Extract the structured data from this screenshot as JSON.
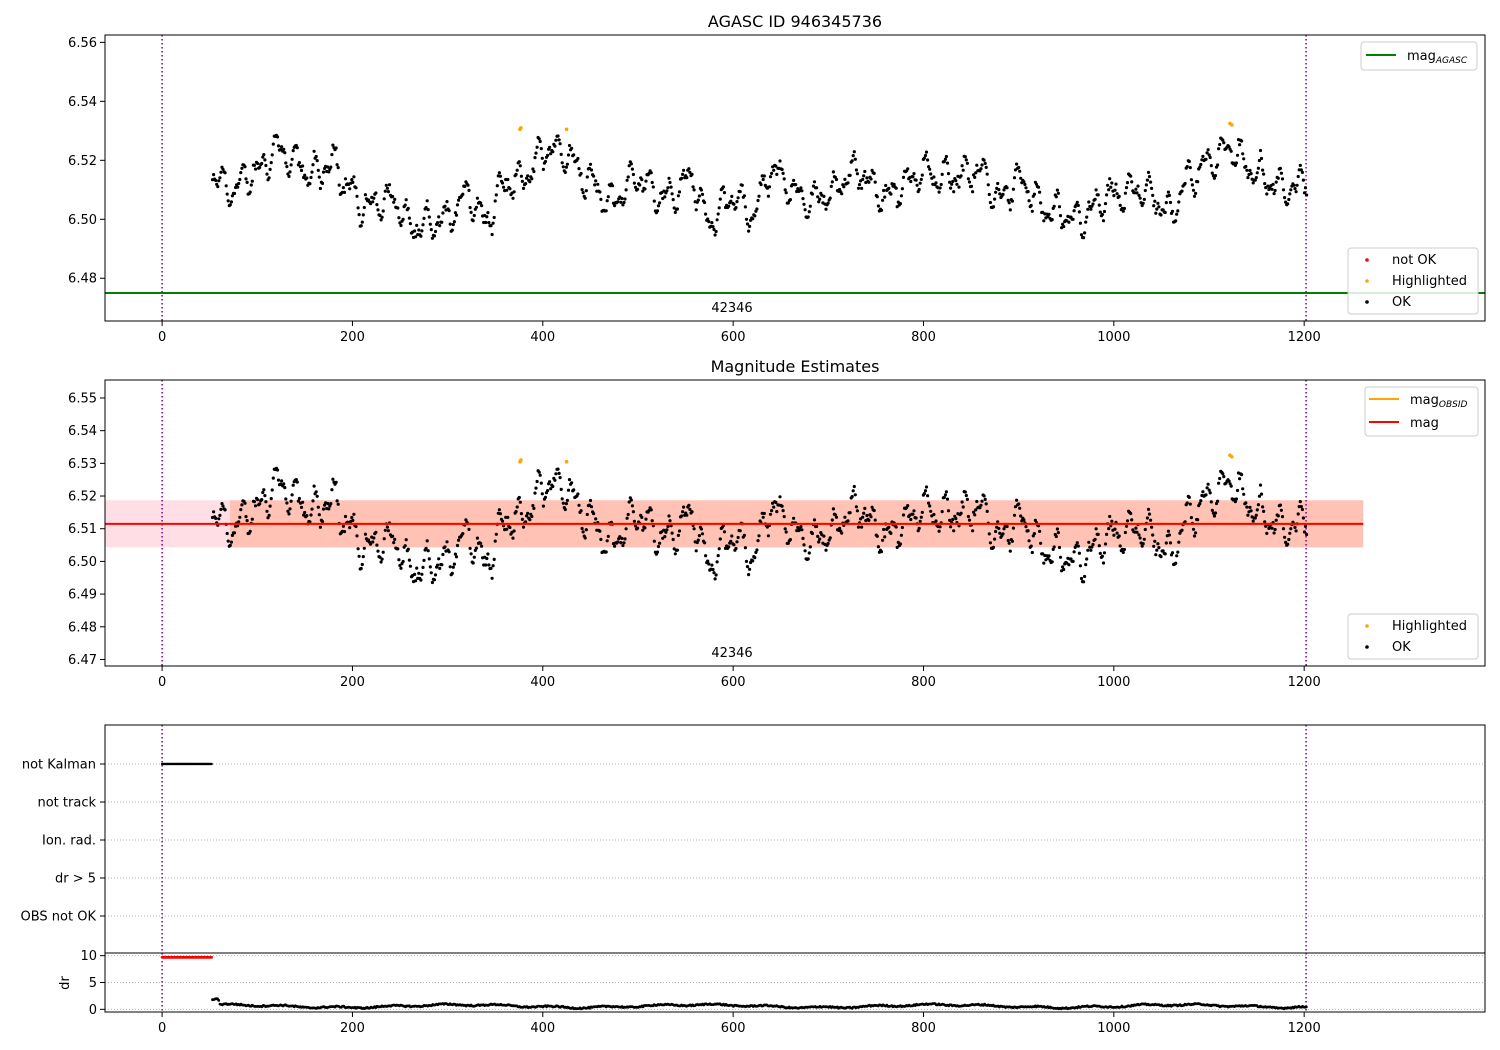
{
  "figure": {
    "obsid_label": "42346"
  },
  "colors": {
    "ok": "#000000",
    "highlighted": "#ffa500",
    "not_ok": "#ff0000",
    "mag_agasc_line": "#008000",
    "mag_line": "#ff0000",
    "mag_obsid_line": "#ffa500",
    "band_outer": "#ffc0cb",
    "band_inner": "#ffa07a",
    "obs_boundary": "#800080",
    "grid": "#b0b0b0"
  },
  "chart_data": [
    {
      "type": "scatter",
      "id": "agasc",
      "title": "AGASC ID 946345736",
      "xlim": [
        -60,
        1390
      ],
      "ylim": [
        6.4655,
        6.5625
      ],
      "xticks": [
        0,
        200,
        400,
        600,
        800,
        1000,
        1200
      ],
      "yticks": [
        6.48,
        6.5,
        6.52,
        6.54,
        6.56
      ],
      "ytick_labels": [
        "6.48",
        "6.50",
        "6.52",
        "6.54",
        "6.56"
      ],
      "mag_agasc": 6.475,
      "obs_boundaries": [
        0,
        1202
      ],
      "obs_label": {
        "text": "42346",
        "x": 601
      },
      "series_range": [
        53,
        1203
      ],
      "legends": [
        {
          "loc": "upper right",
          "entries": [
            {
              "label": "mag",
              "sub": "AGASC",
              "kind": "line",
              "color": "#008000"
            }
          ]
        },
        {
          "loc": "lower right",
          "entries": [
            {
              "label": "not OK",
              "kind": "marker",
              "color": "#ff0000"
            },
            {
              "label": "Highlighted",
              "kind": "marker",
              "color": "#ffa500"
            },
            {
              "label": "OK",
              "kind": "marker",
              "color": "#000000"
            }
          ]
        }
      ],
      "highlighted": [
        [
          376,
          6.5305
        ],
        [
          377,
          6.531
        ],
        [
          425,
          6.5305
        ],
        [
          1122,
          6.5325
        ],
        [
          1124,
          6.532
        ]
      ],
      "trend_knots": [
        [
          53,
          6.515
        ],
        [
          70,
          6.51
        ],
        [
          100,
          6.516
        ],
        [
          120,
          6.524
        ],
        [
          140,
          6.519
        ],
        [
          160,
          6.515
        ],
        [
          180,
          6.519
        ],
        [
          195,
          6.512
        ],
        [
          210,
          6.504
        ],
        [
          240,
          6.507
        ],
        [
          265,
          6.497
        ],
        [
          300,
          6.5
        ],
        [
          320,
          6.509
        ],
        [
          340,
          6.5
        ],
        [
          360,
          6.512
        ],
        [
          380,
          6.514
        ],
        [
          405,
          6.524
        ],
        [
          425,
          6.522
        ],
        [
          445,
          6.514
        ],
        [
          470,
          6.506
        ],
        [
          500,
          6.514
        ],
        [
          530,
          6.507
        ],
        [
          555,
          6.514
        ],
        [
          575,
          6.499
        ],
        [
          600,
          6.508
        ],
        [
          620,
          6.502
        ],
        [
          640,
          6.516
        ],
        [
          680,
          6.506
        ],
        [
          700,
          6.509
        ],
        [
          730,
          6.516
        ],
        [
          760,
          6.508
        ],
        [
          800,
          6.516
        ],
        [
          820,
          6.514
        ],
        [
          860,
          6.516
        ],
        [
          880,
          6.507
        ],
        [
          900,
          6.513
        ],
        [
          930,
          6.503
        ],
        [
          960,
          6.5
        ],
        [
          1000,
          6.508
        ],
        [
          1030,
          6.51
        ],
        [
          1060,
          6.502
        ],
        [
          1080,
          6.514
        ],
        [
          1100,
          6.52
        ],
        [
          1125,
          6.524
        ],
        [
          1145,
          6.516
        ],
        [
          1170,
          6.512
        ],
        [
          1190,
          6.51
        ],
        [
          1203,
          6.515
        ]
      ]
    },
    {
      "type": "scatter",
      "id": "estimates",
      "title": "Magnitude Estimates",
      "xlim": [
        -60,
        1390
      ],
      "ylim": [
        6.468,
        6.5555
      ],
      "xticks": [
        0,
        200,
        400,
        600,
        800,
        1000,
        1200
      ],
      "yticks": [
        6.47,
        6.48,
        6.49,
        6.5,
        6.51,
        6.52,
        6.53,
        6.54,
        6.55
      ],
      "ytick_labels": [
        "6.47",
        "6.48",
        "6.49",
        "6.50",
        "6.51",
        "6.52",
        "6.53",
        "6.54",
        "6.55"
      ],
      "mag": 6.5115,
      "mag_obsid": 6.5115,
      "band_outer": {
        "x": [
          -60,
          1262
        ],
        "y": [
          6.5043,
          6.5187
        ]
      },
      "band_inner": {
        "x": [
          -60,
          1262
        ],
        "y": [
          6.5043,
          6.5187
        ]
      },
      "obs_boundaries": [
        0,
        1202
      ],
      "obs_label": {
        "text": "42346",
        "x": 601
      },
      "legends": [
        {
          "loc": "upper right",
          "entries": [
            {
              "label": "mag",
              "sub": "OBSID",
              "kind": "line",
              "color": "#ffa500"
            },
            {
              "label": "mag",
              "kind": "line",
              "color": "#ff0000"
            }
          ]
        },
        {
          "loc": "lower right",
          "entries": [
            {
              "label": "Highlighted",
              "kind": "marker",
              "color": "#ffa500"
            },
            {
              "label": "OK",
              "kind": "marker",
              "color": "#000000"
            }
          ]
        }
      ]
    },
    {
      "type": "scatter",
      "id": "flags",
      "xlim": [
        -60,
        1390
      ],
      "categories": [
        "not Kalman",
        "not track",
        "Ion. rad.",
        "dr > 5",
        "OBS not OK"
      ],
      "not_kalman_range": [
        0,
        52
      ],
      "obs_boundaries": [
        0,
        1202
      ]
    },
    {
      "type": "scatter",
      "id": "dr",
      "ylabel": "dr",
      "xlim": [
        -60,
        1390
      ],
      "ylim": [
        -0.5,
        10.5
      ],
      "xticks": [
        0,
        200,
        400,
        600,
        800,
        1000,
        1200
      ],
      "xtick_labels": [
        "0",
        "200",
        "400",
        "600",
        "800",
        "1000",
        "1200"
      ],
      "yticks": [
        0,
        5,
        10
      ],
      "ytick_labels": [
        "0",
        "5",
        "10"
      ],
      "red_range": [
        0,
        52
      ],
      "red_value": 9.7,
      "ok_range": [
        53,
        1203
      ],
      "ok_level": 0.6,
      "obs_boundaries": [
        0,
        1202
      ]
    }
  ]
}
